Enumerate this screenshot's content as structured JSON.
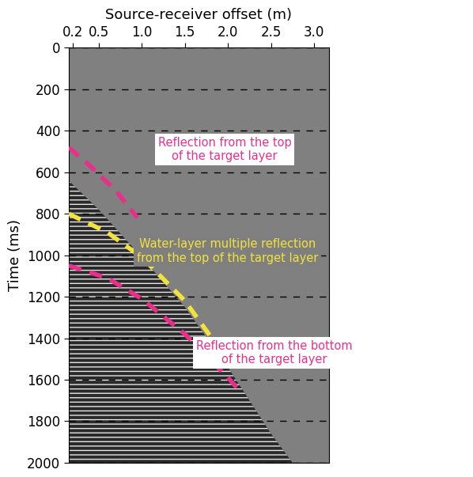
{
  "chart_data": {
    "type": "seismic_section",
    "x_label": "Source-receiver offset (m)",
    "y_label": "Time (ms)",
    "xlim": [
      0.15,
      3.17
    ],
    "xticks": [
      0.2,
      0.5,
      {
        "value": 1,
        "label": "1.0"
      },
      1.5,
      {
        "value": 2,
        "label": "2.0"
      },
      2.5,
      {
        "value": 3,
        "label": "3.0"
      }
    ],
    "ylim": [
      2000,
      0
    ],
    "yticks": [
      0,
      200,
      400,
      600,
      800,
      1000,
      1200,
      1400,
      1600,
      1800,
      2000
    ],
    "grid": "y",
    "data_extent": {
      "x": [
        0.15,
        0.5,
        1.0,
        1.5,
        2.0,
        2.5,
        2.75
      ],
      "y": [
        640,
        780,
        1010,
        1250,
        1540,
        1860,
        2000
      ]
    },
    "annotations": [
      {
        "text": "Reflection from the top\nof the target layer",
        "color": "#e8308a",
        "line_style": "dashed",
        "x": [
          0.15,
          0.4,
          0.7,
          0.95
        ],
        "y": [
          480,
          570,
          690,
          820
        ]
      },
      {
        "text": "Water-layer multiple reflection\nfrom the top of the target layer",
        "color": "#f2e33c",
        "line_style": "dashed",
        "x": [
          0.15,
          0.6,
          1.0,
          1.5,
          1.9
        ],
        "y": [
          800,
          890,
          1010,
          1220,
          1450
        ]
      },
      {
        "text": "Reflection from the bottom\nof the target layer",
        "color": "#e8308a",
        "line_style": "dashed",
        "x": [
          0.15,
          0.6,
          1.0,
          1.5,
          2.0,
          2.15
        ],
        "y": [
          1050,
          1110,
          1210,
          1380,
          1590,
          1660
        ]
      }
    ]
  }
}
